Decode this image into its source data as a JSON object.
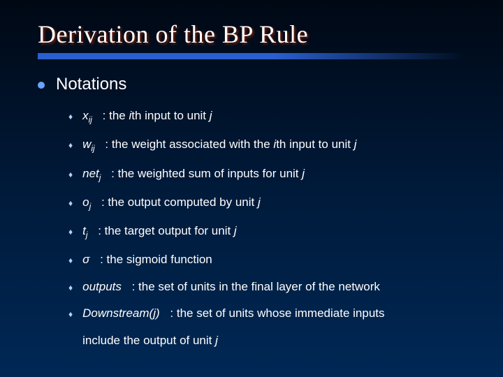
{
  "slide": {
    "title": "Derivation of the BP Rule",
    "title_color": "#ffffff",
    "title_shadow": "#802000",
    "title_fontsize": 36,
    "bar_color": "#2a5fd0",
    "background_gradient": [
      "#000814",
      "#001a3a",
      "#002855"
    ],
    "level1": {
      "bullet_color": "#6aa3ff",
      "text": "Notations",
      "fontsize": 24,
      "color": "#ffffff"
    },
    "level2": {
      "diamond_glyph": "♦",
      "diamond_color": "#b8cfff",
      "fontsize": 17,
      "color": "#ffffff",
      "items": [
        {
          "term_html": "x<sub>ij</sub>",
          "desc_html": ": the <span class='i-ital'>i</span>th input to unit <span class='i-ital'>j</span>"
        },
        {
          "term_html": "w<sub>ij</sub>",
          "desc_html": ": the weight associated with the <span class='i-ital'>i</span>th input to unit <span class='i-ital'>j</span>"
        },
        {
          "term_html": "net<sub>j</sub>",
          "desc_html": ": the weighted sum of inputs for unit <span class='i-ital'>j</span>"
        },
        {
          "term_html": "o<sub>j</sub>",
          "desc_html": ": the output computed by unit <span class='i-ital'>j</span>"
        },
        {
          "term_html": "t<sub>j</sub>",
          "desc_html": ": the target output for unit <span class='i-ital'>j</span>"
        },
        {
          "term_html": "σ",
          "desc_html": ": the sigmoid function"
        },
        {
          "term_html": "outputs",
          "desc_html": ": the set of units in the final layer of the network"
        },
        {
          "term_html": "Downstream(<span style='font-style:italic'>j</span>)",
          "desc_html": ": the set of units whose immediate inputs",
          "cont": "include the output of unit <span class='i-ital'>j</span>"
        }
      ]
    }
  }
}
